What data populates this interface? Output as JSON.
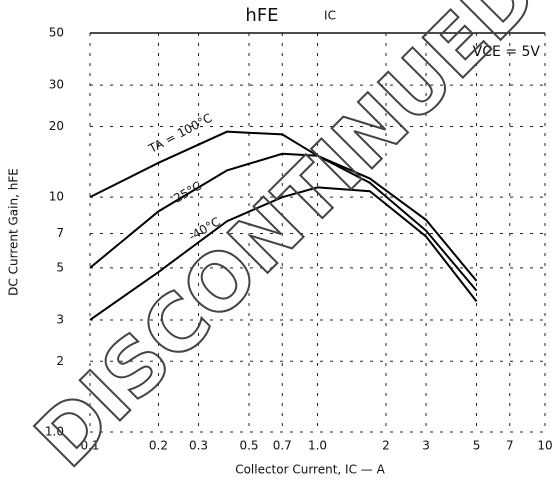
{
  "chart_data": {
    "type": "line",
    "title": "hFE",
    "subtitle": "IC",
    "annotations": [
      "VCE = 5V"
    ],
    "watermark": "DISCONTINUED",
    "y_label": "DC Current Gain, hFE",
    "x_label": "Collector Current, IC — A",
    "x": [
      0.1,
      0.2,
      0.4,
      0.7,
      1,
      1.7,
      3,
      5
    ],
    "series": [
      {
        "name": "TA = 100°C",
        "color": "#000000",
        "values": [
          10,
          14,
          19,
          18.5,
          15,
          12,
          8,
          4.4
        ]
      },
      {
        "name": "25°C",
        "color": "#000000",
        "values": [
          5,
          8.7,
          13,
          15.3,
          15,
          11.5,
          7.2,
          4
        ]
      },
      {
        "name": "-40°C",
        "color": "#000000",
        "values": [
          3,
          4.8,
          7.9,
          10,
          11,
          10.6,
          6.8,
          3.6
        ]
      }
    ],
    "log_x": true,
    "log_y": true,
    "xlim": [
      0.1,
      10
    ],
    "ylim": [
      1,
      50
    ],
    "xticks": [
      {
        "value": 0.1,
        "label": "0.1"
      },
      0.2,
      0.3,
      0.5,
      0.7,
      {
        "value": 1,
        "label": "1.0"
      },
      2,
      3,
      5,
      7,
      10
    ],
    "yticks": [
      {
        "value": 1,
        "label": "1.0"
      },
      2,
      3,
      5,
      7,
      10,
      20,
      30,
      50
    ],
    "grid": true
  }
}
